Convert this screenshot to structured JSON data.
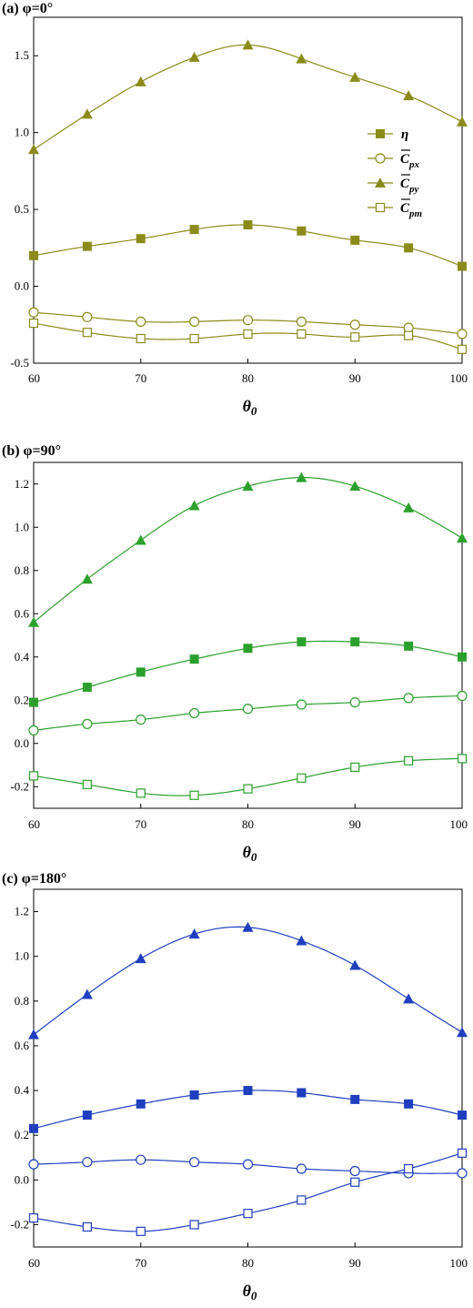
{
  "chart_data": [
    {
      "type": "line",
      "title": "(a) φ=0°",
      "xlabel": "θ0",
      "x": [
        60,
        65,
        70,
        75,
        80,
        85,
        90,
        95,
        100
      ],
      "xlim": [
        60,
        100
      ],
      "xticks": [
        60,
        70,
        80,
        90,
        100
      ],
      "ylim": [
        -0.5,
        1.75
      ],
      "yticks": [
        -0.5,
        0.0,
        0.5,
        1.0,
        1.5
      ],
      "ytick_labels": [
        "-0.5",
        "0.0",
        "0.5",
        "1.0",
        "1.5"
      ],
      "color": "#8b8b1c",
      "legend": "right-center",
      "series": [
        {
          "name": "η",
          "marker": "square-filled",
          "values": [
            0.2,
            0.26,
            0.31,
            0.37,
            0.4,
            0.36,
            0.3,
            0.25,
            0.13
          ]
        },
        {
          "name": "Cpx",
          "marker": "circle-open",
          "values": [
            -0.17,
            -0.2,
            -0.23,
            -0.23,
            -0.22,
            -0.23,
            -0.25,
            -0.27,
            -0.31
          ]
        },
        {
          "name": "Cpy",
          "marker": "triangle-filled",
          "values": [
            0.89,
            1.12,
            1.33,
            1.49,
            1.57,
            1.48,
            1.36,
            1.24,
            1.07
          ]
        },
        {
          "name": "Cpm",
          "marker": "square-open",
          "values": [
            -0.24,
            -0.3,
            -0.34,
            -0.34,
            -0.31,
            -0.31,
            -0.33,
            -0.32,
            -0.41
          ]
        }
      ]
    },
    {
      "type": "line",
      "title": "(b) φ=90°",
      "xlabel": "θ0",
      "x": [
        60,
        65,
        70,
        75,
        80,
        85,
        90,
        95,
        100
      ],
      "xlim": [
        60,
        100
      ],
      "xticks": [
        60,
        70,
        80,
        90,
        100
      ],
      "ylim": [
        -0.3,
        1.3
      ],
      "yticks": [
        -0.2,
        0.0,
        0.2,
        0.4,
        0.6,
        0.8,
        1.0,
        1.2
      ],
      "ytick_labels": [
        "-0.2",
        "0.0",
        "0.2",
        "0.4",
        "0.6",
        "0.8",
        "1.0",
        "1.2"
      ],
      "color": "#2ca02c",
      "series": [
        {
          "name": "η",
          "marker": "square-filled",
          "values": [
            0.19,
            0.26,
            0.33,
            0.39,
            0.44,
            0.47,
            0.47,
            0.45,
            0.4
          ]
        },
        {
          "name": "Cpx",
          "marker": "circle-open",
          "values": [
            0.06,
            0.09,
            0.11,
            0.14,
            0.16,
            0.18,
            0.19,
            0.21,
            0.22
          ]
        },
        {
          "name": "Cpy",
          "marker": "triangle-filled",
          "values": [
            0.56,
            0.76,
            0.94,
            1.1,
            1.19,
            1.23,
            1.19,
            1.09,
            0.95
          ]
        },
        {
          "name": "Cpm",
          "marker": "square-open",
          "values": [
            -0.15,
            -0.19,
            -0.23,
            -0.24,
            -0.21,
            -0.16,
            -0.11,
            -0.08,
            -0.07
          ]
        }
      ]
    },
    {
      "type": "line",
      "title": "(c) φ=180°",
      "xlabel": "θ0",
      "x": [
        60,
        65,
        70,
        75,
        80,
        85,
        90,
        95,
        100
      ],
      "xlim": [
        60,
        100
      ],
      "xticks": [
        60,
        70,
        80,
        90,
        100
      ],
      "ylim": [
        -0.3,
        1.3
      ],
      "yticks": [
        -0.2,
        0.0,
        0.2,
        0.4,
        0.6,
        0.8,
        1.0,
        1.2
      ],
      "ytick_labels": [
        "-0.2",
        "0.0",
        "0.2",
        "0.4",
        "0.6",
        "0.8",
        "1.0",
        "1.2"
      ],
      "color": "#1f3fbf",
      "series": [
        {
          "name": "η",
          "marker": "square-filled",
          "values": [
            0.23,
            0.29,
            0.34,
            0.38,
            0.4,
            0.39,
            0.36,
            0.34,
            0.29
          ]
        },
        {
          "name": "Cpx",
          "marker": "circle-open",
          "values": [
            0.07,
            0.08,
            0.09,
            0.08,
            0.07,
            0.05,
            0.04,
            0.03,
            0.03
          ]
        },
        {
          "name": "Cpy",
          "marker": "triangle-filled",
          "values": [
            0.65,
            0.83,
            0.99,
            1.1,
            1.13,
            1.07,
            0.96,
            0.81,
            0.66
          ]
        },
        {
          "name": "Cpm",
          "marker": "square-open",
          "values": [
            -0.17,
            -0.21,
            -0.23,
            -0.2,
            -0.15,
            -0.09,
            -0.01,
            0.05,
            0.12
          ]
        }
      ]
    }
  ]
}
